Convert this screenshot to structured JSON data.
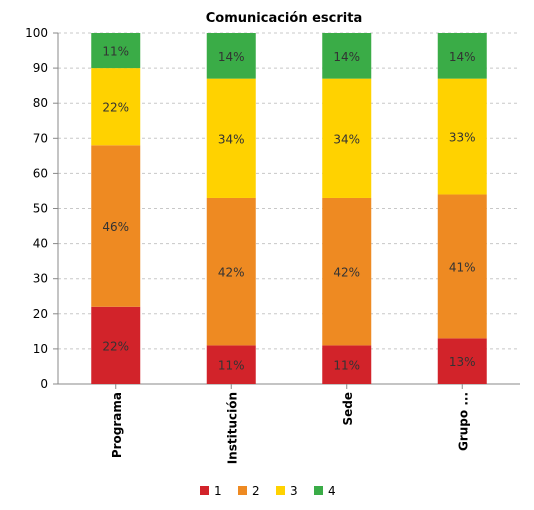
{
  "chart_data": {
    "type": "bar",
    "stacked": true,
    "title": "Comunicación escrita",
    "categories": [
      "Programa",
      "Institución",
      "Sede",
      "Grupo ..."
    ],
    "series": [
      {
        "name": "1",
        "color": "#d2232a",
        "values": [
          22,
          11,
          11,
          13
        ],
        "labels": [
          "22%",
          "11%",
          "11%",
          "13%"
        ]
      },
      {
        "name": "2",
        "color": "#ee8a22",
        "values": [
          46,
          42,
          42,
          41
        ],
        "labels": [
          "46%",
          "42%",
          "42%",
          "41%"
        ]
      },
      {
        "name": "3",
        "color": "#ffd200",
        "values": [
          22,
          34,
          34,
          33
        ],
        "labels": [
          "22%",
          "34%",
          "34%",
          "33%"
        ]
      },
      {
        "name": "4",
        "color": "#3aac47",
        "values": [
          11,
          14,
          14,
          14
        ],
        "labels": [
          "11%",
          "14%",
          "14%",
          "14%"
        ]
      }
    ],
    "ylim": [
      0,
      100
    ],
    "yticks": [
      "0",
      "10",
      "20",
      "30",
      "40",
      "50",
      "60",
      "70",
      "80",
      "90",
      "100"
    ],
    "xlabel": "",
    "ylabel": "",
    "grid": true,
    "legend_position": "bottom"
  }
}
